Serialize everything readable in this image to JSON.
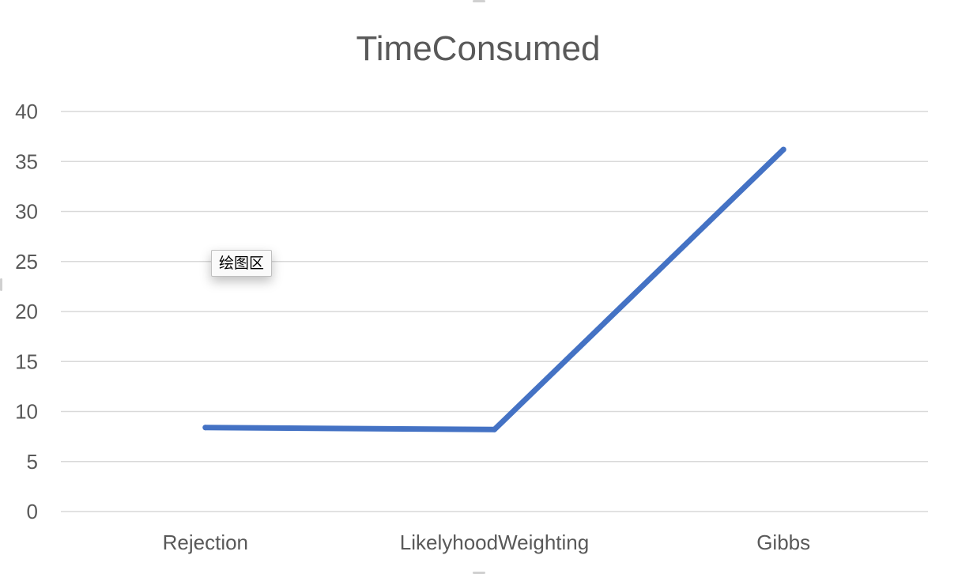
{
  "chart_data": {
    "type": "line",
    "title": "TimeConsumed",
    "categories": [
      "Rejection",
      "LikelyhoodWeighting",
      "Gibbs"
    ],
    "series": [
      {
        "values": [
          8.4,
          8.2,
          36.2
        ],
        "color": "#4472C4"
      }
    ],
    "ylim": [
      0,
      40
    ],
    "yticks": [
      0,
      5,
      10,
      15,
      20,
      25,
      30,
      35,
      40
    ],
    "xlabel": "",
    "ylabel": "",
    "grid": true,
    "legend": "none"
  },
  "tooltip": {
    "text": "绘图区"
  }
}
